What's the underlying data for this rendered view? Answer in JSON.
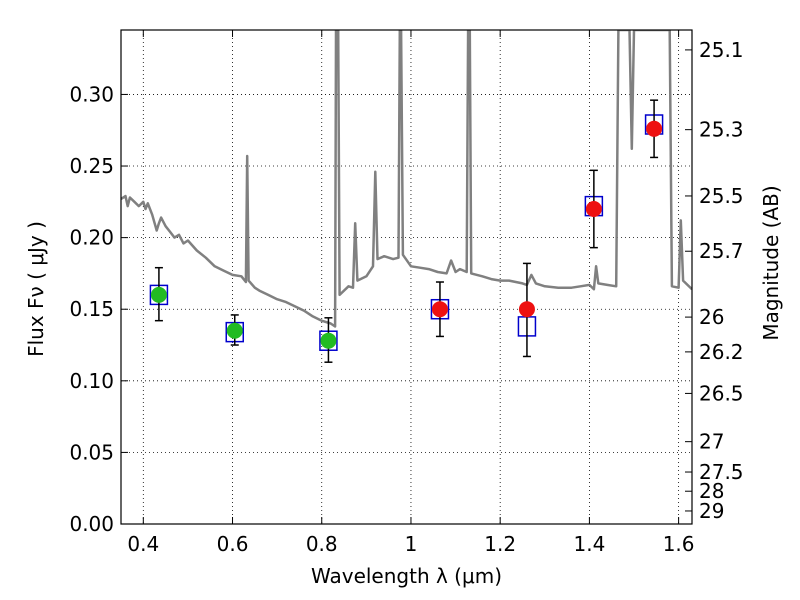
{
  "chart_data": {
    "type": "scatter",
    "xlabel": "Wavelength  λ (μm)",
    "ylabel": "Flux  Fν  ( μJy )",
    "y2label": "Magnitude (AB)",
    "xlim": [
      0.35,
      1.63
    ],
    "ylim": [
      0.0,
      0.345
    ],
    "grid": true,
    "x_ticks": [
      0.4,
      0.6,
      0.8,
      1.0,
      1.2,
      1.4,
      1.6
    ],
    "x_tick_labels": [
      "0.4",
      "0.6",
      "0.8",
      "1",
      "1.2",
      "1.4",
      "1.6"
    ],
    "y_ticks": [
      0.0,
      0.05,
      0.1,
      0.15,
      0.2,
      0.25,
      0.3
    ],
    "y_tick_labels": [
      "0.00",
      "0.05",
      "0.10",
      "0.15",
      "0.20",
      "0.25",
      "0.30"
    ],
    "y2_ticks": [
      {
        "flux": 0.3311,
        "label": "25.1"
      },
      {
        "flux": 0.2754,
        "label": "25.3"
      },
      {
        "flux": 0.2291,
        "label": "25.5"
      },
      {
        "flux": 0.1905,
        "label": "25.7"
      },
      {
        "flux": 0.1445,
        "label": "26"
      },
      {
        "flux": 0.1202,
        "label": "26.2"
      },
      {
        "flux": 0.0912,
        "label": "26.5"
      },
      {
        "flux": 0.0575,
        "label": "27"
      },
      {
        "flux": 0.0363,
        "label": "27.5"
      },
      {
        "flux": 0.0229,
        "label": "28"
      },
      {
        "flux": 0.0091,
        "label": "29"
      }
    ],
    "series": [
      {
        "type": "line",
        "color": "#808080",
        "points": [
          [
            0.35,
            0.227
          ],
          [
            0.36,
            0.229
          ],
          [
            0.365,
            0.222
          ],
          [
            0.37,
            0.228
          ],
          [
            0.38,
            0.225
          ],
          [
            0.39,
            0.222
          ],
          [
            0.4,
            0.225
          ],
          [
            0.405,
            0.22
          ],
          [
            0.41,
            0.224
          ],
          [
            0.42,
            0.216
          ],
          [
            0.43,
            0.205
          ],
          [
            0.435,
            0.21
          ],
          [
            0.44,
            0.214
          ],
          [
            0.45,
            0.208
          ],
          [
            0.46,
            0.204
          ],
          [
            0.47,
            0.2
          ],
          [
            0.48,
            0.202
          ],
          [
            0.49,
            0.196
          ],
          [
            0.5,
            0.198
          ],
          [
            0.52,
            0.191
          ],
          [
            0.54,
            0.186
          ],
          [
            0.56,
            0.18
          ],
          [
            0.58,
            0.177
          ],
          [
            0.6,
            0.174
          ],
          [
            0.62,
            0.173
          ],
          [
            0.63,
            0.169
          ],
          [
            0.633,
            0.257
          ],
          [
            0.636,
            0.17
          ],
          [
            0.65,
            0.165
          ],
          [
            0.66,
            0.163
          ],
          [
            0.68,
            0.16
          ],
          [
            0.7,
            0.157
          ],
          [
            0.72,
            0.155
          ],
          [
            0.74,
            0.152
          ],
          [
            0.76,
            0.149
          ],
          [
            0.78,
            0.145
          ],
          [
            0.8,
            0.142
          ],
          [
            0.82,
            0.14
          ],
          [
            0.83,
            0.138
          ],
          [
            0.832,
            0.345
          ],
          [
            0.837,
            0.345
          ],
          [
            0.84,
            0.16
          ],
          [
            0.86,
            0.166
          ],
          [
            0.87,
            0.165
          ],
          [
            0.875,
            0.21
          ],
          [
            0.88,
            0.17
          ],
          [
            0.9,
            0.173
          ],
          [
            0.915,
            0.18
          ],
          [
            0.92,
            0.246
          ],
          [
            0.925,
            0.185
          ],
          [
            0.94,
            0.187
          ],
          [
            0.96,
            0.185
          ],
          [
            0.972,
            0.186
          ],
          [
            0.975,
            0.345
          ],
          [
            0.978,
            0.345
          ],
          [
            0.982,
            0.188
          ],
          [
            1.0,
            0.18
          ],
          [
            1.02,
            0.179
          ],
          [
            1.04,
            0.178
          ],
          [
            1.06,
            0.176
          ],
          [
            1.08,
            0.175
          ],
          [
            1.09,
            0.184
          ],
          [
            1.1,
            0.176
          ],
          [
            1.11,
            0.178
          ],
          [
            1.125,
            0.176
          ],
          [
            1.128,
            0.345
          ],
          [
            1.132,
            0.345
          ],
          [
            1.135,
            0.175
          ],
          [
            1.16,
            0.173
          ],
          [
            1.18,
            0.171
          ],
          [
            1.2,
            0.17
          ],
          [
            1.22,
            0.17
          ],
          [
            1.25,
            0.168
          ],
          [
            1.26,
            0.167
          ],
          [
            1.27,
            0.174
          ],
          [
            1.28,
            0.168
          ],
          [
            1.3,
            0.166
          ],
          [
            1.33,
            0.165
          ],
          [
            1.36,
            0.165
          ],
          [
            1.38,
            0.166
          ],
          [
            1.4,
            0.167
          ],
          [
            1.41,
            0.164
          ],
          [
            1.415,
            0.18
          ],
          [
            1.42,
            0.168
          ],
          [
            1.44,
            0.167
          ],
          [
            1.46,
            0.166
          ],
          [
            1.465,
            0.345
          ],
          [
            1.475,
            0.345
          ],
          [
            1.49,
            0.345
          ],
          [
            1.495,
            0.262
          ],
          [
            1.5,
            0.345
          ],
          [
            1.55,
            0.345
          ],
          [
            1.58,
            0.345
          ],
          [
            1.585,
            0.166
          ],
          [
            1.6,
            0.165
          ],
          [
            1.605,
            0.212
          ],
          [
            1.61,
            0.17
          ],
          [
            1.63,
            0.164
          ]
        ]
      },
      {
        "type": "square-marker",
        "color": "#0000cc",
        "x": [
          0.435,
          0.605,
          0.815,
          1.065,
          1.26,
          1.41,
          1.545
        ],
        "y": [
          0.16,
          0.134,
          0.128,
          0.15,
          0.138,
          0.222,
          0.279
        ]
      },
      {
        "type": "errorbar",
        "color": "#000000",
        "x": [
          0.435,
          0.605,
          0.815,
          1.065,
          1.26,
          1.41,
          1.545
        ],
        "y": [
          0.16,
          0.134,
          0.128,
          0.15,
          0.15,
          0.22,
          0.276
        ],
        "ylow": [
          0.142,
          0.125,
          0.113,
          0.131,
          0.117,
          0.193,
          0.256
        ],
        "yhigh": [
          0.179,
          0.146,
          0.144,
          0.169,
          0.182,
          0.247,
          0.296
        ]
      },
      {
        "type": "circle-marker",
        "color": "#22bb22",
        "x": [
          0.435,
          0.605,
          0.815
        ],
        "y": [
          0.16,
          0.135,
          0.128
        ]
      },
      {
        "type": "circle-marker",
        "color": "#ee1111",
        "x": [
          1.065,
          1.26,
          1.41,
          1.545
        ],
        "y": [
          0.15,
          0.15,
          0.22,
          0.276
        ]
      }
    ]
  }
}
